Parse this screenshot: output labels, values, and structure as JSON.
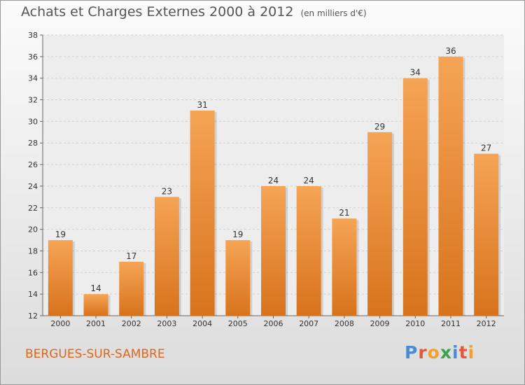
{
  "header": {
    "title": "Achats et Charges Externes 2000 à 2012",
    "unit": "(en milliers d'€)"
  },
  "footer": {
    "place": "BERGUES-SUR-SAMBRE",
    "logo": [
      "P",
      "r",
      "o",
      "x",
      "i",
      "t",
      "i"
    ]
  },
  "colors": {
    "bar_light": "#f5a455",
    "bar_dark": "#d8731c",
    "place_text": "#e0661a"
  },
  "chart_data": {
    "type": "bar",
    "title": "Achats et Charges Externes 2000 à 2012",
    "subtitle": "(en milliers d'€)",
    "categories": [
      "2000",
      "2001",
      "2002",
      "2003",
      "2004",
      "2005",
      "2006",
      "2007",
      "2008",
      "2009",
      "2010",
      "2011",
      "2012"
    ],
    "values": [
      19,
      14,
      17,
      23,
      31,
      19,
      24,
      24,
      21,
      29,
      34,
      36,
      27
    ],
    "ylim": [
      12,
      38
    ],
    "yticks": [
      12,
      14,
      16,
      18,
      20,
      22,
      24,
      26,
      28,
      30,
      32,
      34,
      36,
      38
    ],
    "grid": true,
    "legend": "none"
  }
}
